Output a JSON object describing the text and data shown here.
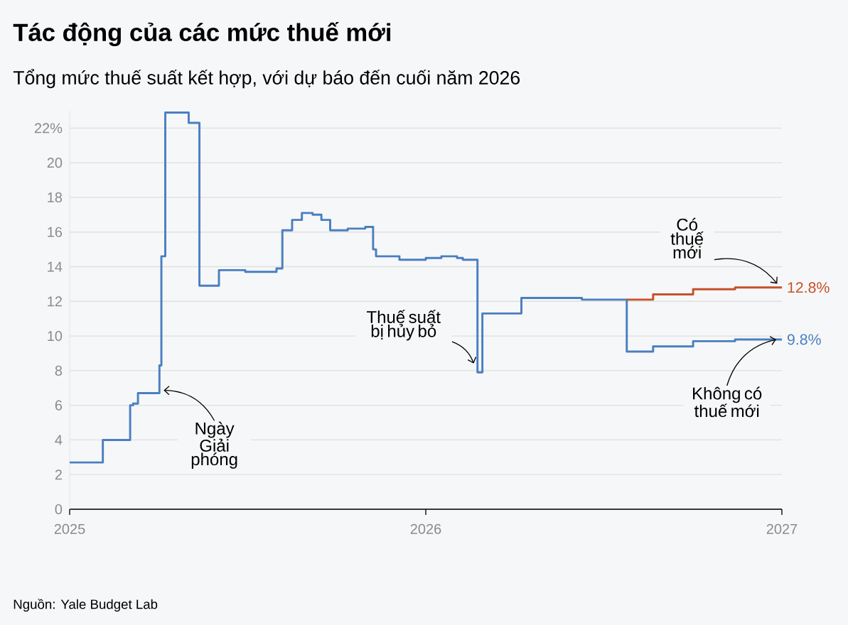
{
  "chart_data": {
    "type": "step",
    "title": "Tác động của các mức thuế mới",
    "subtitle": "Tổng mức thuế suất kết hợp, với dự báo đến cuối năm 2026",
    "xlim": [
      "2025",
      "2027"
    ],
    "xticks": [
      "2025",
      "2026",
      "2027"
    ],
    "ylim": [
      0,
      23
    ],
    "yticks": [
      0,
      2,
      4,
      6,
      8,
      10,
      12,
      14,
      16,
      18,
      20,
      {
        "value": 22,
        "label": "22%"
      }
    ],
    "grid": "y",
    "legend": false,
    "marker": "none",
    "line_style": "solid",
    "series": [
      {
        "name": "Không có thuế mới",
        "color": "#4a7fc1",
        "x": [
          "2025-01-01",
          "2025-02-04",
          "2025-03-04",
          "2025-03-07",
          "2025-03-12",
          "2025-04-03",
          "2025-04-05",
          "2025-04-09",
          "2025-05-03",
          "2025-05-14",
          "2025-06-03",
          "2025-06-30",
          "2025-08-01",
          "2025-08-07",
          "2025-08-17",
          "2025-08-27",
          "2025-09-07",
          "2025-09-16",
          "2025-09-25",
          "2025-10-13",
          "2025-10-31",
          "2025-11-08",
          "2025-11-11",
          "2025-12-05",
          "2026-01-01",
          "2026-01-17",
          "2026-02-02",
          "2026-02-08",
          "2026-02-23",
          "2026-02-28",
          "2026-04-09",
          "2026-06-10",
          "2026-07-26",
          "2026-08-22",
          "2026-10-02",
          "2026-11-14",
          "2027-01-01"
        ],
        "values": [
          2.7,
          4.0,
          6.0,
          6.1,
          6.7,
          8.3,
          14.6,
          22.9,
          22.3,
          12.9,
          13.8,
          13.7,
          13.9,
          16.1,
          16.7,
          17.1,
          17.0,
          16.7,
          16.1,
          16.2,
          16.3,
          15.0,
          14.6,
          14.4,
          14.5,
          14.6,
          14.5,
          14.4,
          7.9,
          11.3,
          12.2,
          12.1,
          9.1,
          9.4,
          9.7,
          9.8,
          9.8
        ],
        "value_labels": [
          null,
          null,
          null,
          null,
          null,
          null,
          null,
          null,
          null,
          null,
          null,
          null,
          null,
          null,
          null,
          null,
          null,
          null,
          null,
          null,
          null,
          null,
          null,
          null,
          null,
          null,
          null,
          null,
          null,
          null,
          null,
          null,
          null,
          null,
          null,
          null,
          "9.8%"
        ]
      },
      {
        "name": "Có thuế mới",
        "color": "#c8502a",
        "x": [
          "2026-07-26",
          "2026-08-22",
          "2026-10-02",
          "2026-11-14",
          "2027-01-01"
        ],
        "values": [
          12.1,
          12.4,
          12.7,
          12.8,
          12.8
        ],
        "value_labels": [
          null,
          null,
          null,
          null,
          "12.8%"
        ]
      }
    ],
    "annotations": [
      {
        "text": "Ngày Giải phóng",
        "x": "2025-04-03",
        "y": 6.7
      },
      {
        "text": "Thuế suất bị hủy bỏ",
        "x": "2026-02-23",
        "y": 8.0
      },
      "Nguồn: Yale Budget Lab"
    ]
  }
}
